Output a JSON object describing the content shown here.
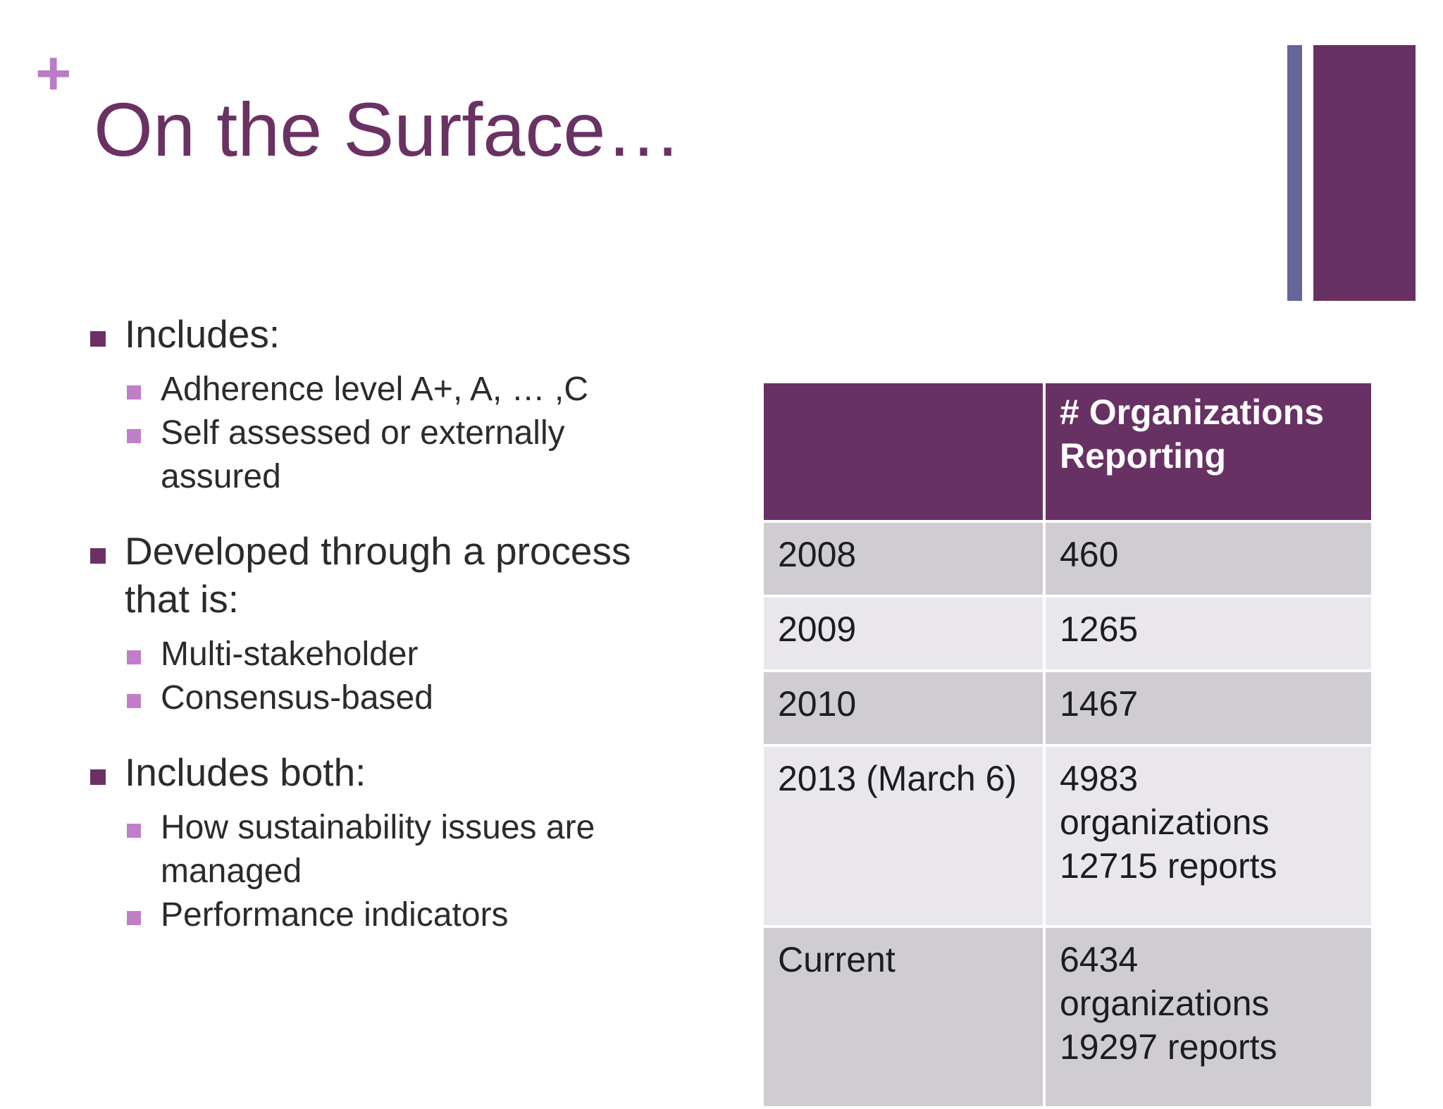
{
  "slide": {
    "plus_glyph": "+",
    "title": "On the Surface…"
  },
  "bullets": [
    {
      "text": "Includes:",
      "sub": [
        "Adherence level A+, A, … ,C",
        "Self assessed or externally assured"
      ]
    },
    {
      "text": "Developed through a process that is:",
      "sub": [
        "Multi-stakeholder",
        "Consensus-based"
      ]
    },
    {
      "text": "Includes both:",
      "sub": [
        "How sustainability issues are managed",
        "Performance indicators"
      ]
    }
  ],
  "table": {
    "header": [
      "",
      "# Organizations Reporting"
    ],
    "rows": [
      {
        "year": "2008",
        "value": [
          "460"
        ]
      },
      {
        "year": "2009",
        "value": [
          "1265"
        ]
      },
      {
        "year": "2010",
        "value": [
          "1467"
        ]
      },
      {
        "year": "2013 (March 6)",
        "value": [
          "4983",
          "organizations",
          "12715 reports"
        ]
      },
      {
        "year": "Current",
        "value": [
          "6434",
          "organizations",
          "19297 reports"
        ]
      }
    ]
  },
  "colors": {
    "title": "#6a3163",
    "accent_plum": "#683164",
    "accent_slate": "#656599",
    "bullet_l1": "#6b3164",
    "bullet_l2": "#c07ec8"
  }
}
